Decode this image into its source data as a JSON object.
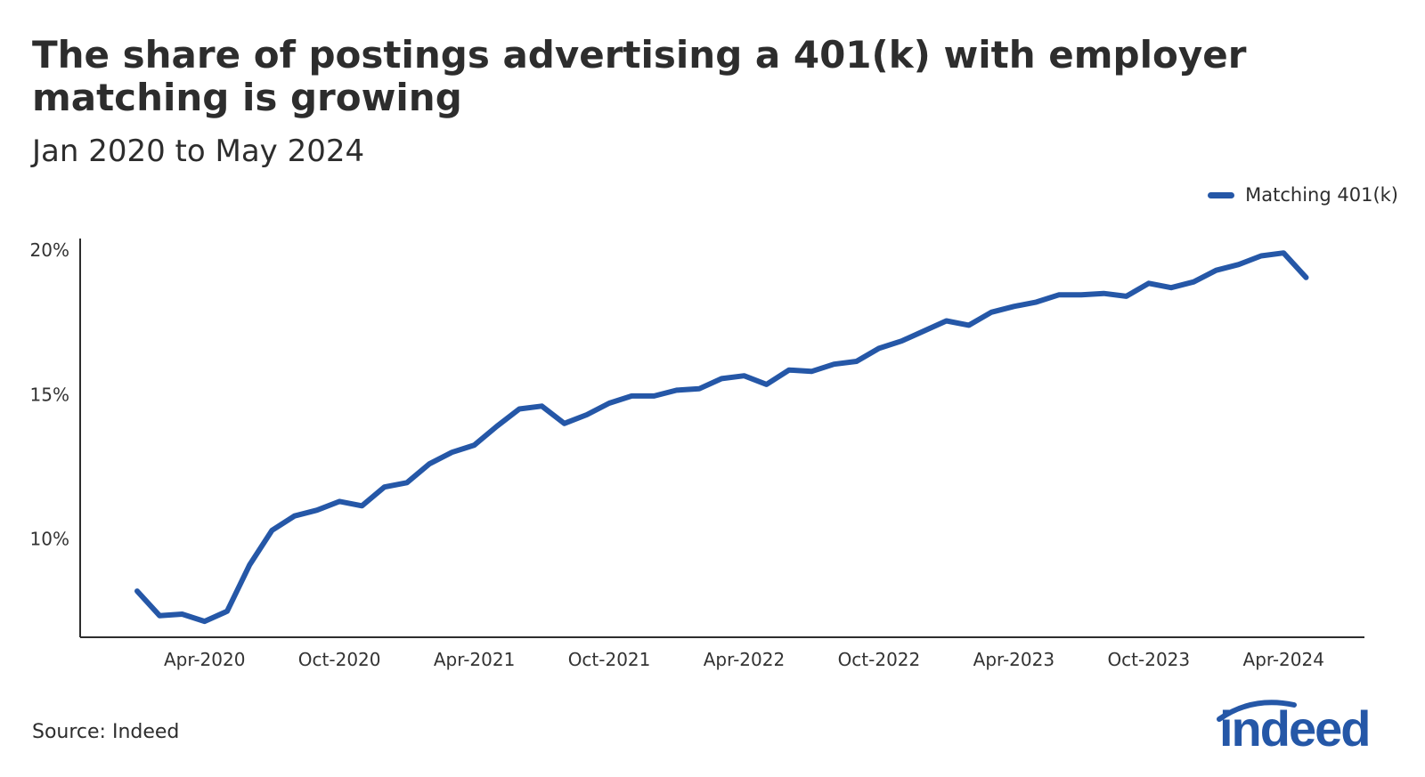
{
  "title": "The share of postings advertising a 401(k) with employer matching is growing",
  "subtitle": "Jan 2020 to May 2024",
  "source": "Source: Indeed",
  "brand": {
    "logo_text": "indeed",
    "color": "#2557a7"
  },
  "chart_data": {
    "type": "line",
    "title": "The share of postings advertising a 401(k) with employer matching is growing",
    "subtitle": "Jan 2020 to May 2024",
    "xlabel": "",
    "ylabel": "",
    "x": [
      "2020-01",
      "2020-02",
      "2020-03",
      "2020-04",
      "2020-05",
      "2020-06",
      "2020-07",
      "2020-08",
      "2020-09",
      "2020-10",
      "2020-11",
      "2020-12",
      "2021-01",
      "2021-02",
      "2021-03",
      "2021-04",
      "2021-05",
      "2021-06",
      "2021-07",
      "2021-08",
      "2021-09",
      "2021-10",
      "2021-11",
      "2021-12",
      "2022-01",
      "2022-02",
      "2022-03",
      "2022-04",
      "2022-05",
      "2022-06",
      "2022-07",
      "2022-08",
      "2022-09",
      "2022-10",
      "2022-11",
      "2022-12",
      "2023-01",
      "2023-02",
      "2023-03",
      "2023-04",
      "2023-05",
      "2023-06",
      "2023-07",
      "2023-08",
      "2023-09",
      "2023-10",
      "2023-11",
      "2023-12",
      "2024-01",
      "2024-02",
      "2024-03",
      "2024-04",
      "2024-05"
    ],
    "series": [
      {
        "name": "Matching 401(k)",
        "color": "#2557a7",
        "values": [
          8.2,
          7.35,
          7.4,
          7.15,
          7.5,
          9.1,
          10.3,
          10.8,
          11.0,
          11.3,
          11.15,
          11.8,
          11.95,
          12.6,
          13.0,
          13.25,
          13.9,
          14.5,
          14.6,
          14.0,
          14.3,
          14.7,
          14.95,
          14.95,
          15.15,
          15.2,
          15.55,
          15.65,
          15.35,
          15.85,
          15.8,
          16.05,
          16.15,
          16.6,
          16.85,
          17.2,
          17.55,
          17.4,
          17.85,
          18.05,
          18.2,
          18.45,
          18.45,
          18.5,
          18.4,
          18.85,
          18.7,
          18.9,
          19.3,
          19.5,
          19.8,
          19.9,
          19.05
        ]
      }
    ],
    "x_ticks": [
      "Apr-2020",
      "Oct-2020",
      "Apr-2021",
      "Oct-2021",
      "Apr-2022",
      "Oct-2022",
      "Apr-2023",
      "Oct-2023",
      "Apr-2024"
    ],
    "x_tick_months": [
      "2020-04",
      "2020-10",
      "2021-04",
      "2021-10",
      "2022-04",
      "2022-10",
      "2023-04",
      "2023-10",
      "2024-04"
    ],
    "y_ticks": [
      10,
      15,
      20
    ],
    "y_tick_labels": [
      "10%",
      "15%",
      "20%"
    ],
    "ylim": [
      6.6,
      20.4
    ],
    "grid": false,
    "legend_position": "top-right"
  }
}
